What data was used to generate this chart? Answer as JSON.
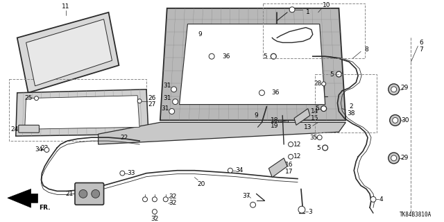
{
  "bg_color": "#ffffff",
  "diagram_code": "TK84B3810A",
  "line_color": "#2a2a2a",
  "label_fontsize": 6.5,
  "gray_fill": "#c8c8c8",
  "light_gray": "#e0e0e0"
}
